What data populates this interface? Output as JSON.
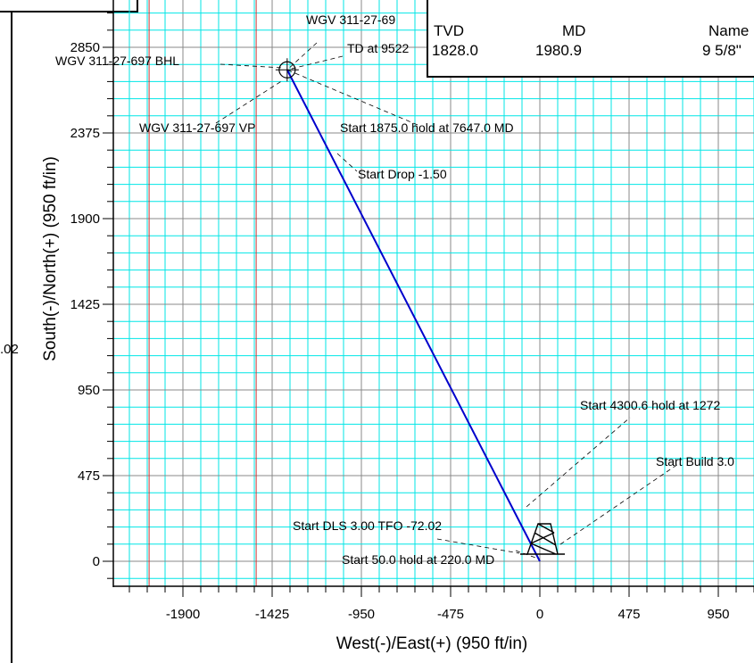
{
  "chart_data": {
    "type": "line",
    "xlabel": "West(-)/East(+)  (950 ft/in)",
    "ylabel": "South(-)/North(+)  (950 ft/in)",
    "x_ticks": [
      "-1900",
      "-1425",
      "-950",
      "-475",
      "0",
      "475",
      "950"
    ],
    "y_ticks": [
      "2850",
      "2375",
      "1900",
      "1425",
      "950",
      "475",
      "0"
    ],
    "xlim": [
      -2300,
      1150
    ],
    "ylim": [
      -120,
      3000
    ],
    "grid": true,
    "series": [
      {
        "color": "#0000cc",
        "x": [
          0,
          -1345
        ],
        "y": [
          0,
          2725
        ]
      }
    ],
    "annotations": [
      "WGV 311-27-69",
      "TD at 9522",
      "WGV 311-27-697 BHL",
      "WGV 311-27-697 VP",
      "Start 1875.0 hold at 7647.0 MD",
      "Start Drop -1.50",
      "Start 4300.6 hold at 1272",
      "Start Build 3.0",
      "Start DLS 3.00 TFO -72.02",
      "Start 50.0 hold at 220.0 MD"
    ],
    "side_fragment": ".02"
  },
  "casing_table": {
    "headers": [
      "TVD",
      "MD",
      "Name"
    ],
    "row": [
      "1828.0",
      "1980.9",
      "9 5/8\""
    ]
  },
  "colors": {
    "grid_cyan": "#00e6e6",
    "well_path": "#0000cc",
    "red_lines": "#cc3333"
  }
}
